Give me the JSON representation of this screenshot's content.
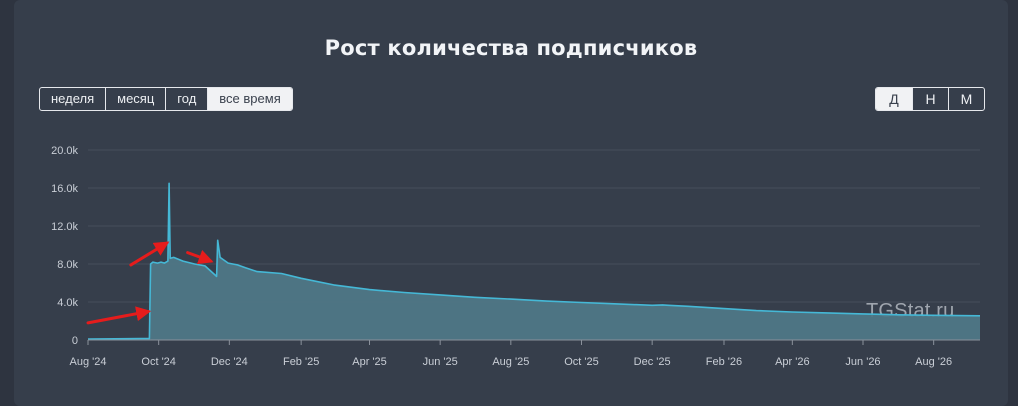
{
  "title": "Рост количества подписчиков",
  "period_buttons": [
    {
      "label": "неделя",
      "active": false
    },
    {
      "label": "месяц",
      "active": false
    },
    {
      "label": "год",
      "active": false
    },
    {
      "label": "все время",
      "active": true
    }
  ],
  "unit_buttons": [
    {
      "label": "Д",
      "active": true
    },
    {
      "label": "Н",
      "active": false
    },
    {
      "label": "М",
      "active": false
    }
  ],
  "watermark": "TGStat.ru",
  "colors": {
    "panel_bg": "#363e4b",
    "line": "#45b8d6",
    "area_fill": "#4f7786",
    "grid": "#454e5b",
    "annotation_arrows": "#e51c1c"
  },
  "chart_data": {
    "type": "area",
    "title": "Рост количества подписчиков",
    "xlabel": "",
    "ylabel": "",
    "x_type": "date",
    "x_range": [
      "2024-08-01",
      "2026-09-10"
    ],
    "ylim": [
      0,
      20000
    ],
    "yticks": [
      0,
      4000,
      8000,
      12000,
      16000,
      20000
    ],
    "ytick_labels": [
      "0",
      "4.0k",
      "8.0k",
      "12.0k",
      "16.0k",
      "20.0k"
    ],
    "xticks": [
      "2024-08-01",
      "2024-10-01",
      "2024-12-01",
      "2025-02-01",
      "2025-04-01",
      "2025-06-01",
      "2025-08-01",
      "2025-10-01",
      "2025-12-01",
      "2026-02-01",
      "2026-04-01",
      "2026-06-01",
      "2026-08-01"
    ],
    "xtick_labels": [
      "Aug '24",
      "Oct '24",
      "Dec '24",
      "Feb '25",
      "Apr '25",
      "Jun '25",
      "Aug '25",
      "Oct '25",
      "Dec '25",
      "Feb '26",
      "Apr '26",
      "Jun '26",
      "Aug '26"
    ],
    "grid": true,
    "legend": "none",
    "series": [
      {
        "points": [
          [
            "2024-08-01",
            100
          ],
          [
            "2024-09-15",
            150
          ],
          [
            "2024-09-23",
            150
          ],
          [
            "2024-09-24",
            8000
          ],
          [
            "2024-09-26",
            8200
          ],
          [
            "2024-09-30",
            8100
          ],
          [
            "2024-10-03",
            8200
          ],
          [
            "2024-10-06",
            8100
          ],
          [
            "2024-10-09",
            8300
          ],
          [
            "2024-10-10",
            16500
          ],
          [
            "2024-10-11",
            8600
          ],
          [
            "2024-10-14",
            8700
          ],
          [
            "2024-10-22",
            8300
          ],
          [
            "2024-11-01",
            8000
          ],
          [
            "2024-11-10",
            7800
          ],
          [
            "2024-11-20",
            6700
          ],
          [
            "2024-11-21",
            10500
          ],
          [
            "2024-11-23",
            8700
          ],
          [
            "2024-11-30",
            8100
          ],
          [
            "2024-12-08",
            7900
          ],
          [
            "2024-12-15",
            7600
          ],
          [
            "2024-12-25",
            7200
          ],
          [
            "2025-01-15",
            7000
          ],
          [
            "2025-02-01",
            6500
          ],
          [
            "2025-03-01",
            5800
          ],
          [
            "2025-04-01",
            5300
          ],
          [
            "2025-05-01",
            5000
          ],
          [
            "2025-06-01",
            4750
          ],
          [
            "2025-07-01",
            4500
          ],
          [
            "2025-08-01",
            4300
          ],
          [
            "2025-09-01",
            4100
          ],
          [
            "2025-10-01",
            3950
          ],
          [
            "2025-11-01",
            3800
          ],
          [
            "2025-12-01",
            3650
          ],
          [
            "2025-12-10",
            3700
          ],
          [
            "2025-12-15",
            3650
          ],
          [
            "2026-01-01",
            3550
          ],
          [
            "2026-02-01",
            3300
          ],
          [
            "2026-03-01",
            3100
          ],
          [
            "2026-04-01",
            2950
          ],
          [
            "2026-05-01",
            2850
          ],
          [
            "2026-06-01",
            2750
          ],
          [
            "2026-07-01",
            2650
          ],
          [
            "2026-08-01",
            2600
          ],
          [
            "2026-09-10",
            2550
          ]
        ]
      }
    ],
    "annotations": [
      {
        "type": "arrow",
        "color": "#e51c1c",
        "from": [
          "2024-08-01",
          1800
        ],
        "to": [
          "2024-09-22",
          3000
        ]
      },
      {
        "type": "arrow",
        "color": "#e51c1c",
        "from": [
          "2024-09-07",
          7900
        ],
        "to": [
          "2024-10-08",
          10200
        ]
      },
      {
        "type": "arrow",
        "color": "#e51c1c",
        "from": [
          "2024-10-26",
          9200
        ],
        "to": [
          "2024-11-15",
          8300
        ]
      }
    ]
  }
}
